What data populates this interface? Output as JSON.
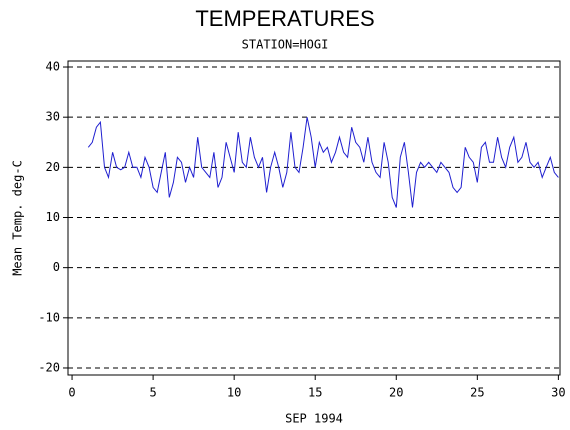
{
  "chart_data": {
    "type": "line",
    "title": "TEMPERATURES",
    "subtitle": "STATION=HOGI",
    "x_label": "SEP 1994",
    "y_label": "Mean Temp. deg-C",
    "color": "#1f1fd0",
    "grid": true,
    "xlim": [
      -0.25,
      30.1
    ],
    "ylim": [
      -21.4,
      41.2
    ],
    "xticks": [
      0,
      5,
      10,
      15,
      20,
      25,
      30
    ],
    "yticks": [
      -20,
      -10,
      0,
      10,
      20,
      30,
      40
    ],
    "x": [
      1,
      1.25,
      1.5,
      1.75,
      2,
      2.25,
      2.5,
      2.75,
      3,
      3.25,
      3.5,
      3.75,
      4,
      4.25,
      4.5,
      4.75,
      5,
      5.25,
      5.5,
      5.75,
      6,
      6.25,
      6.5,
      6.75,
      7,
      7.25,
      7.5,
      7.75,
      8,
      8.25,
      8.5,
      8.75,
      9,
      9.25,
      9.5,
      9.75,
      10,
      10.25,
      10.5,
      10.75,
      11,
      11.25,
      11.5,
      11.75,
      12,
      12.25,
      12.5,
      12.75,
      13,
      13.25,
      13.5,
      13.75,
      14,
      14.25,
      14.5,
      14.75,
      15,
      15.25,
      15.5,
      15.75,
      16,
      16.25,
      16.5,
      16.75,
      17,
      17.25,
      17.5,
      17.75,
      18,
      18.25,
      18.5,
      18.75,
      19,
      19.25,
      19.5,
      19.75,
      20,
      20.25,
      20.5,
      20.75,
      21,
      21.25,
      21.5,
      21.75,
      22,
      22.25,
      22.5,
      22.75,
      23,
      23.25,
      23.5,
      23.75,
      24,
      24.25,
      24.5,
      24.75,
      25,
      25.25,
      25.5,
      25.75,
      26,
      26.25,
      26.5,
      26.75,
      27,
      27.25,
      27.5,
      27.75,
      28,
      28.25,
      28.5,
      28.75,
      29,
      29.25,
      29.5,
      29.75,
      30
    ],
    "values": [
      24,
      25,
      28,
      29,
      20,
      18,
      23,
      20,
      19.5,
      20,
      23,
      20,
      20,
      18,
      22,
      20,
      16,
      15,
      19,
      23,
      14,
      17,
      22,
      21,
      17,
      20,
      18,
      26,
      20,
      19,
      18,
      23,
      16,
      18,
      25,
      22,
      19,
      27,
      21,
      20,
      26,
      22,
      20,
      22,
      15,
      20,
      23,
      20,
      16,
      19,
      27,
      20,
      19,
      24,
      30,
      26,
      20,
      25,
      23,
      24,
      21,
      23,
      26,
      23,
      22,
      28,
      25,
      24,
      21,
      26,
      21,
      19,
      18,
      25,
      21,
      14,
      12,
      22,
      25,
      19,
      12,
      19,
      21,
      20,
      21,
      20,
      19,
      21,
      20,
      19,
      16,
      15,
      16,
      24,
      22,
      21,
      17,
      24,
      25,
      21,
      21,
      26,
      22,
      20,
      24,
      26,
      21,
      22,
      25,
      21,
      20,
      21,
      18,
      20,
      22,
      19,
      18
    ]
  }
}
